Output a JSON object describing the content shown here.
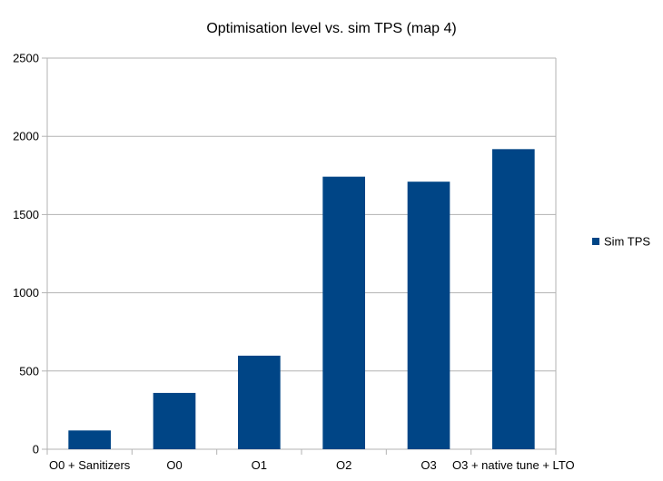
{
  "chart_data": {
    "type": "bar",
    "title": "Optimisation level vs. sim TPS (map 4)",
    "xlabel": "",
    "ylabel": "",
    "categories": [
      "O0 + Sanitizers",
      "O0",
      "O1",
      "O2",
      "O3",
      "O3 + native tune + LTO"
    ],
    "series": [
      {
        "name": "Sim TPS",
        "color": "#004586",
        "values": [
          120,
          360,
          598,
          1742,
          1710,
          1918
        ]
      }
    ],
    "ylim": [
      0,
      2500
    ],
    "yticks": [
      0,
      500,
      1000,
      1500,
      2000,
      2500
    ],
    "grid": true,
    "legend_position": "right"
  }
}
